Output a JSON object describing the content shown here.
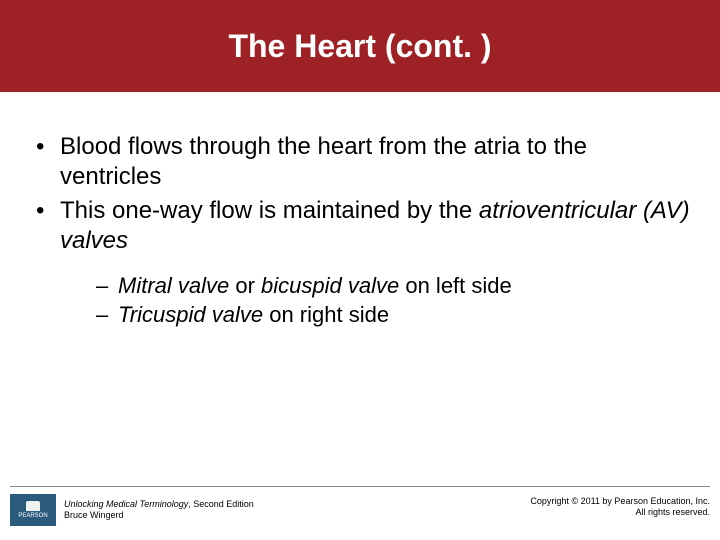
{
  "title": "The Heart (cont. )",
  "bullets": [
    {
      "text": "Blood flows through the heart from the atria to the ventricles"
    },
    {
      "text_before": "This one-way flow is maintained by the ",
      "italic": "atrioventricular (AV) valves"
    }
  ],
  "sub_bullets": [
    {
      "i1": "Mitral valve",
      "plain1": " or ",
      "i2": "bicuspid valve",
      "plain2": " on left side"
    },
    {
      "i1": "Tricuspid valve",
      "plain1": " on right side",
      "i2": "",
      "plain2": ""
    }
  ],
  "footer": {
    "logo_label": "PEARSON",
    "book_title": "Unlocking Medical Terminology",
    "book_edition": ", Second Edition",
    "author": "Bruce Wingerd",
    "copyright_line1": "Copyright © 2011 by Pearson Education, Inc.",
    "copyright_line2": "All rights reserved."
  },
  "colors": {
    "title_bg": "#9d2125",
    "title_fg": "#ffffff",
    "text": "#000000",
    "logo_bg": "#2a5b7d"
  }
}
